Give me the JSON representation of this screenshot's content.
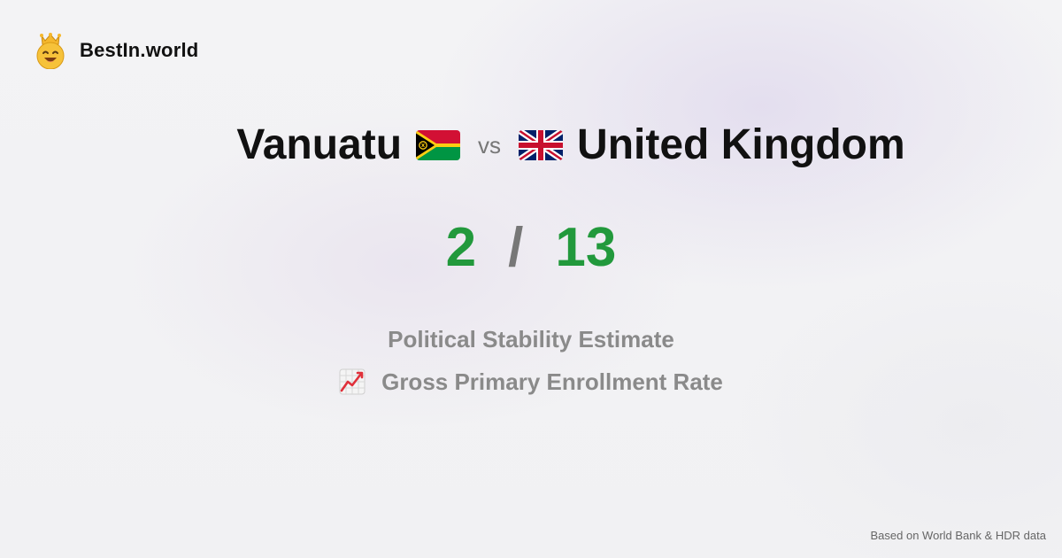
{
  "brand": {
    "name": "BestIn.world",
    "icon": "crown-smiley-icon"
  },
  "comparison": {
    "left_country": "Vanuatu",
    "left_flag": "vanuatu-flag-icon",
    "separator": "vs",
    "right_flag": "uk-flag-icon",
    "right_country": "United Kingdom"
  },
  "score": {
    "left": "2",
    "divider": "/",
    "right": "13",
    "color": "#22993c"
  },
  "metrics": [
    {
      "label": "Political Stability Estimate"
    },
    {
      "label": "Gross Primary Enrollment Rate",
      "icon": "chart-increasing-icon"
    }
  ],
  "footer": {
    "source": "Based on World Bank & HDR data"
  }
}
